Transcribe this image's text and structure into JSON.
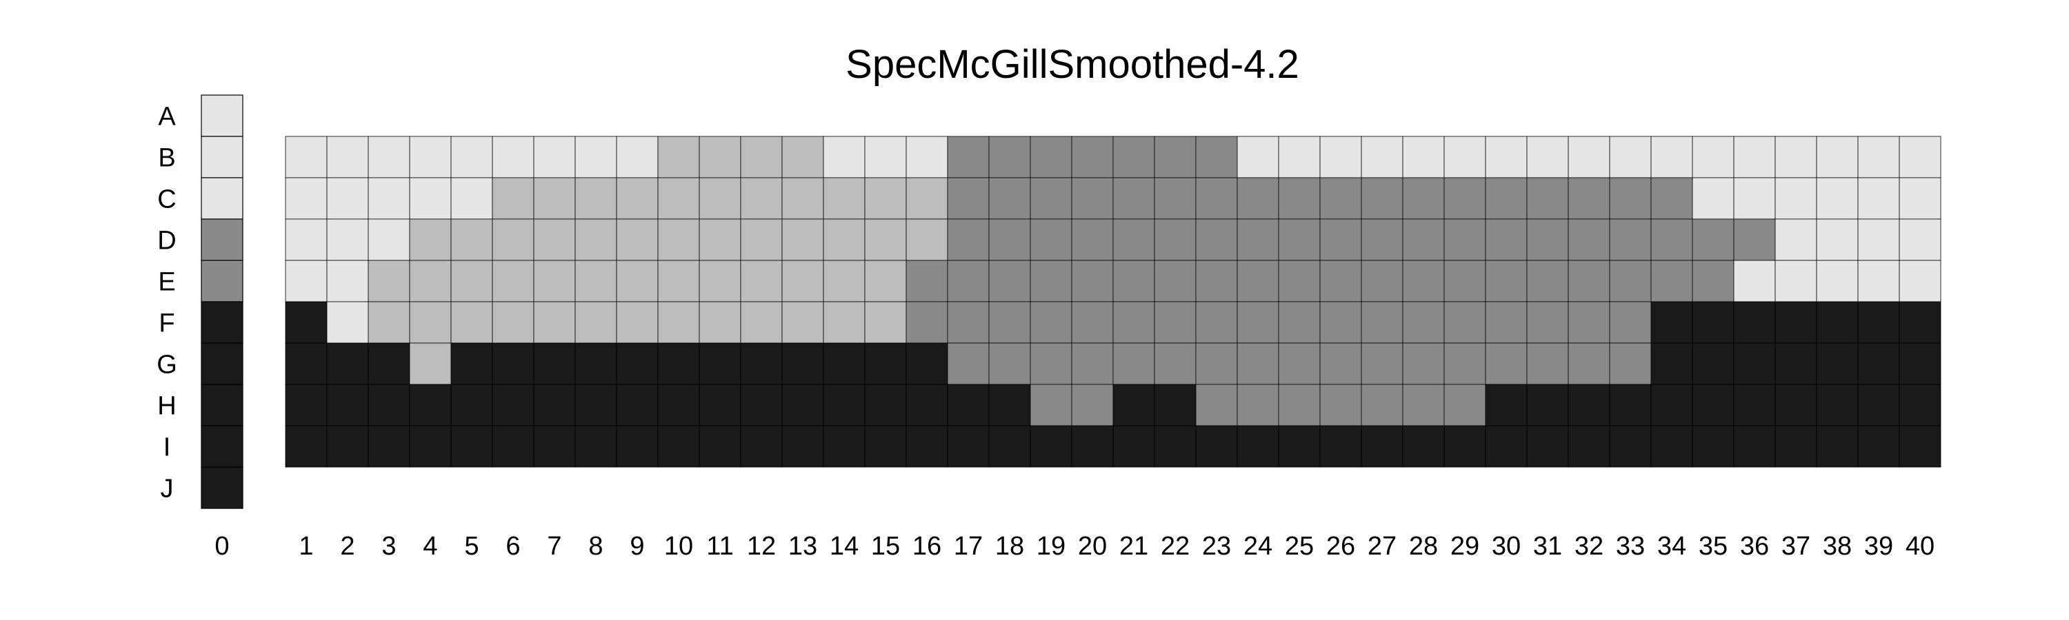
{
  "chart_data": {
    "type": "heatmap",
    "title": "SpecMcGillSmoothed-4.2",
    "rows": [
      "A",
      "B",
      "C",
      "D",
      "E",
      "F",
      "G",
      "H",
      "I",
      "J"
    ],
    "column_zero": "0",
    "columns": [
      "1",
      "2",
      "3",
      "4",
      "5",
      "6",
      "7",
      "8",
      "9",
      "10",
      "11",
      "12",
      "13",
      "14",
      "15",
      "16",
      "17",
      "18",
      "19",
      "20",
      "21",
      "22",
      "23",
      "24",
      "25",
      "26",
      "27",
      "28",
      "29",
      "30",
      "31",
      "32",
      "33",
      "34",
      "35",
      "36",
      "37",
      "38",
      "39",
      "40"
    ],
    "palette": [
      "#e6e6e6",
      "#bdbdbd",
      "#8a8a8a",
      "#1a1a1a"
    ],
    "column_zero_levels": [
      0,
      0,
      0,
      2,
      2,
      3,
      3,
      3,
      3,
      3
    ],
    "grid_rows": [
      "B",
      "C",
      "D",
      "E",
      "F",
      "G",
      "H",
      "I"
    ],
    "grid_levels": [
      "0000000001111000222222200000000000000000",
      "0000011111111111222222222222222222000000",
      "0001111111111111222222222222222222220000",
      "0011111111111112222222222222222222200000",
      "3011111111111112222222222222222223333333",
      "3331333333333333222222222222222223333333",
      "3333333333333333332233222222233333333333",
      "3333333333333333333333333333333333333333"
    ]
  }
}
